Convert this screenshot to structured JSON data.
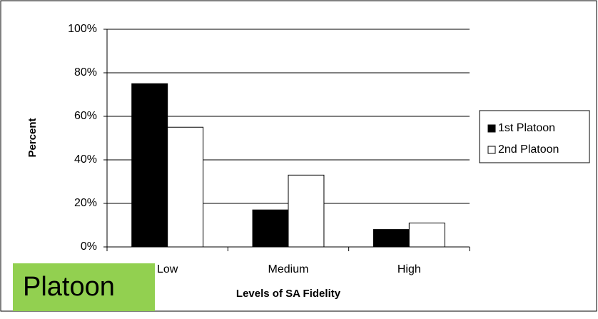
{
  "chart_data": {
    "type": "bar",
    "categories": [
      "Low",
      "Medium",
      "High"
    ],
    "series": [
      {
        "name": "1st Platoon",
        "color": "#000000",
        "values": [
          75,
          17,
          8
        ]
      },
      {
        "name": "2nd Platoon",
        "color": "#ffffff",
        "values": [
          55,
          33,
          11
        ]
      }
    ],
    "ylim": [
      0,
      100
    ],
    "yticks": [
      {
        "value": 0,
        "label": "0%"
      },
      {
        "value": 20,
        "label": "20%"
      },
      {
        "value": 40,
        "label": "40%"
      },
      {
        "value": 60,
        "label": "60%"
      },
      {
        "value": 80,
        "label": "80%"
      },
      {
        "value": 100,
        "label": "100%"
      }
    ],
    "grid": true,
    "y_label": "Percent",
    "x_label": "Levels of SA Fidelity",
    "legend": "right",
    "annotation": "Platoon"
  }
}
